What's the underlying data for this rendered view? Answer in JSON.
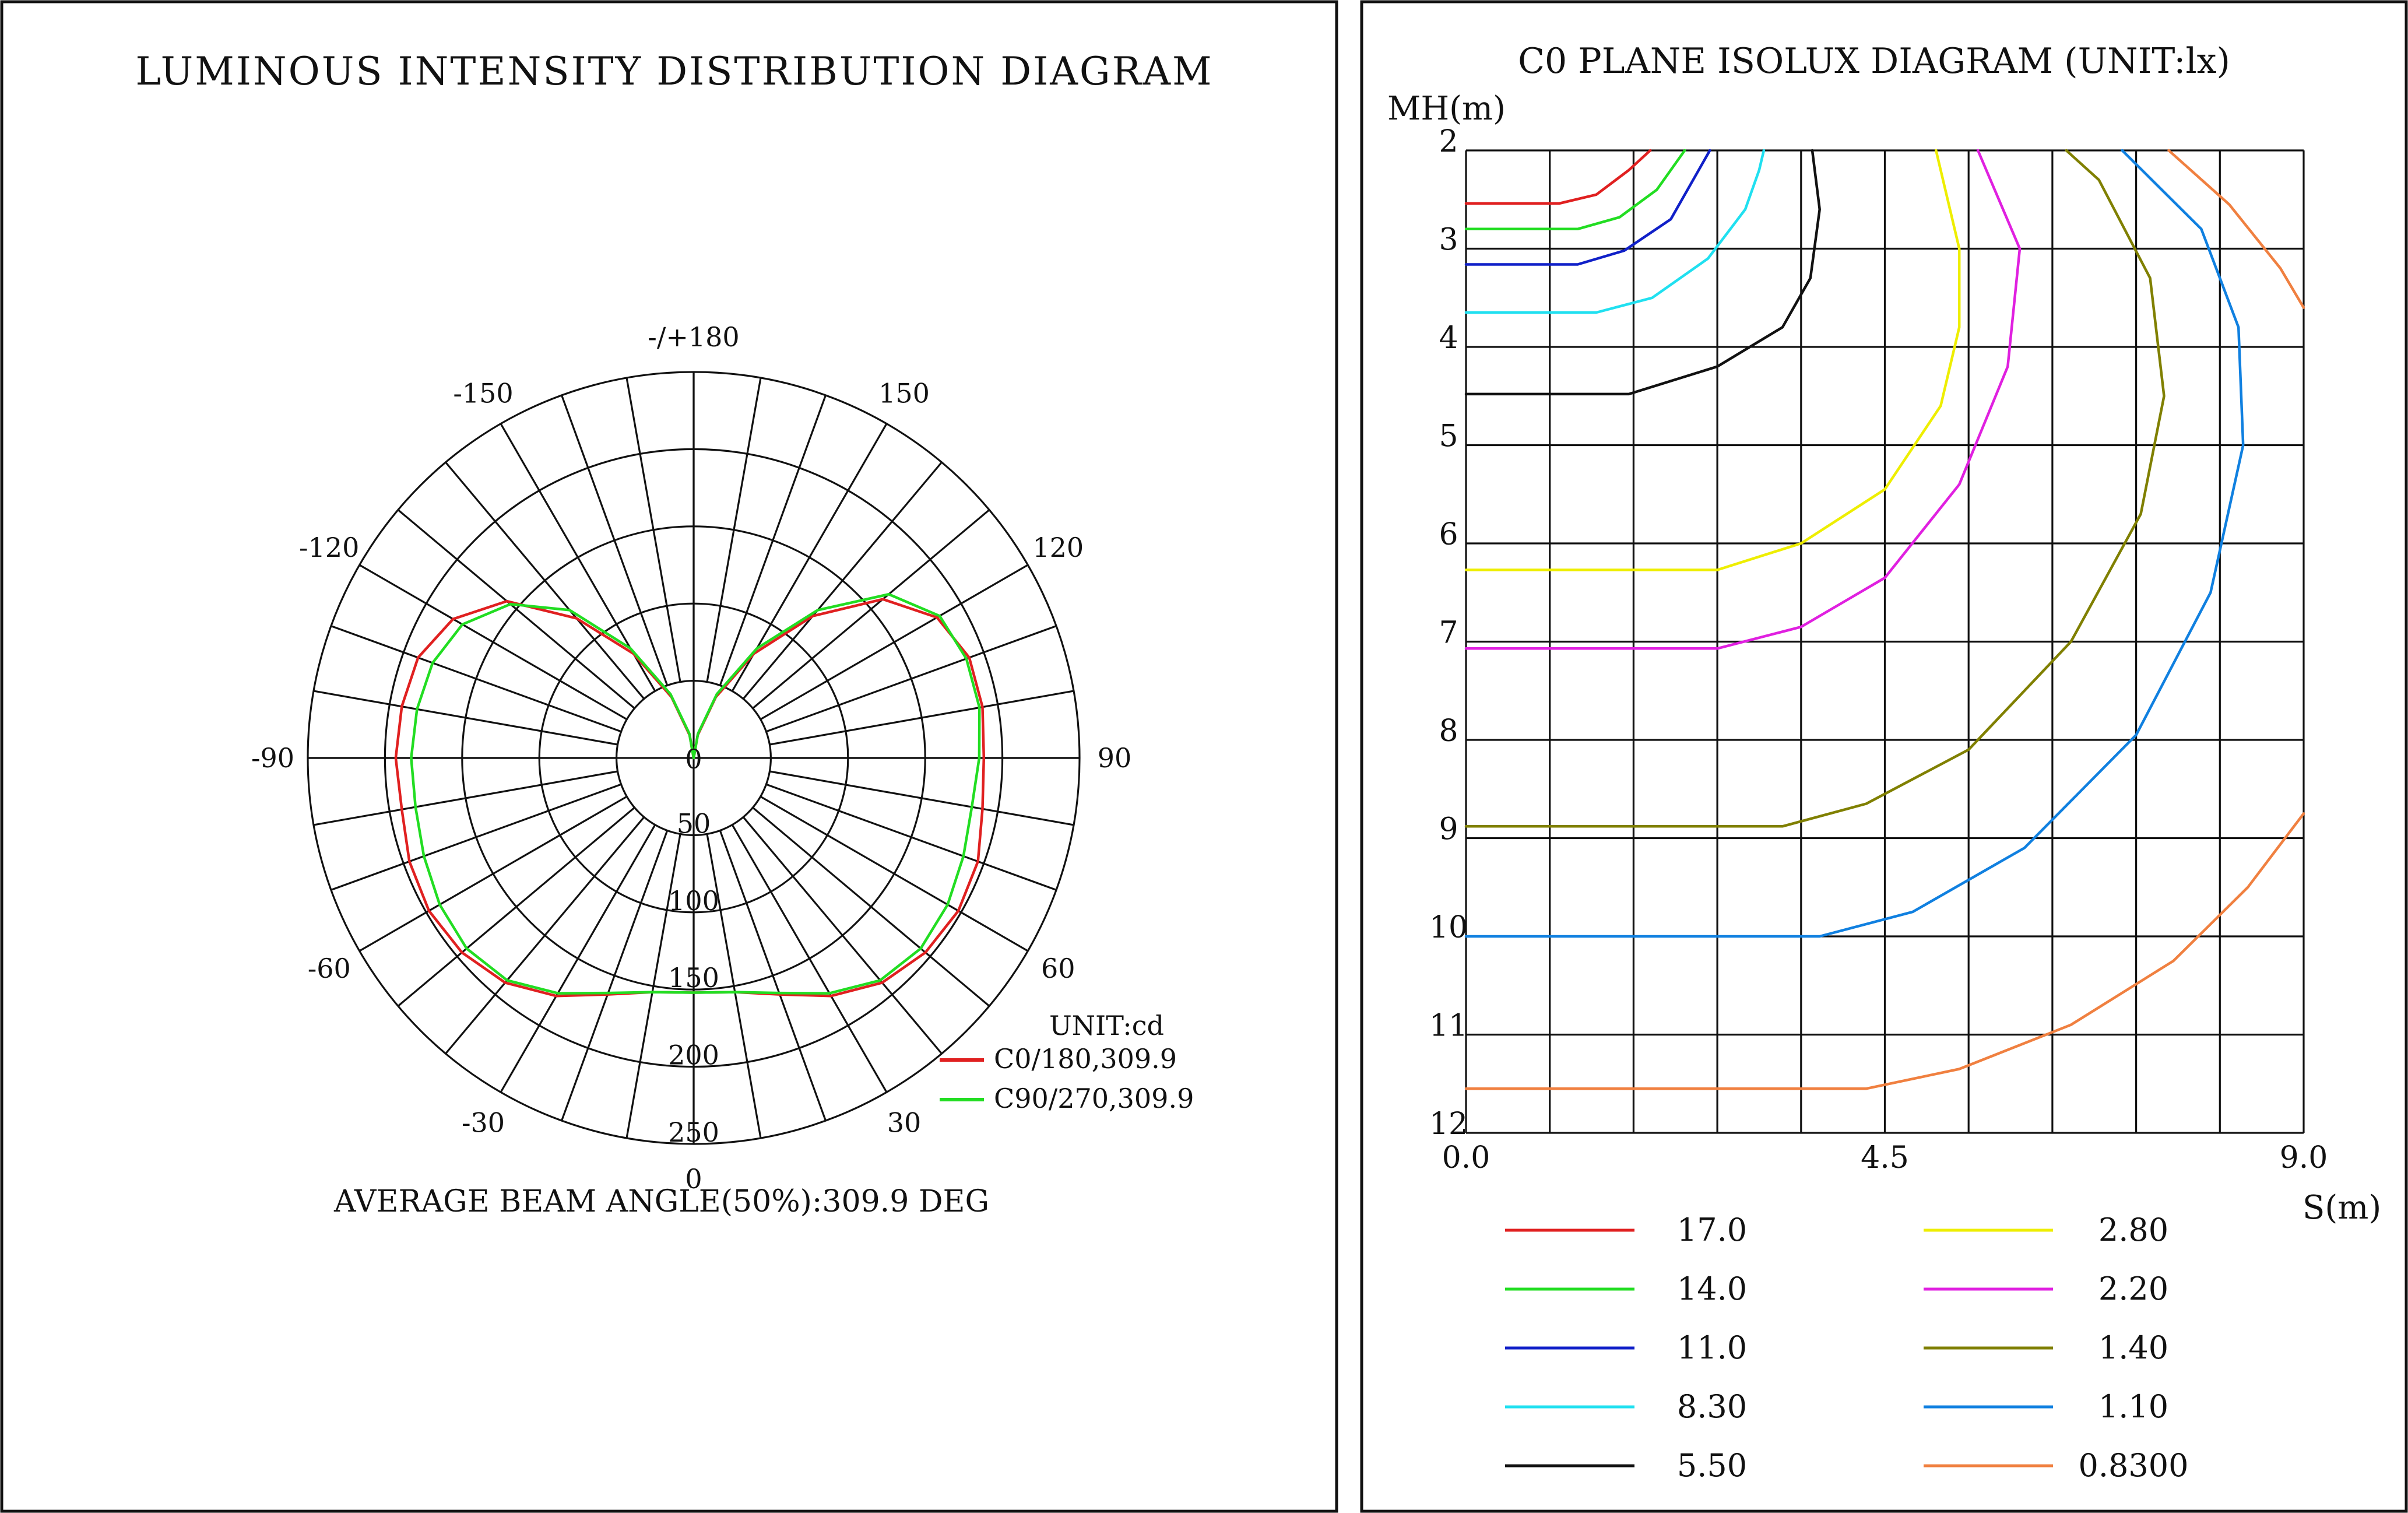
{
  "chart_data": [
    {
      "type": "polar",
      "title": "LUMINOUS INTENSITY DISTRIBUTION DIAGRAM",
      "unit_label": "UNIT:cd",
      "footer": "AVERAGE BEAM ANGLE(50%):309.9 DEG",
      "angle_labels": [
        {
          "angle": 180,
          "text": "-/+180"
        },
        {
          "angle": 150,
          "text": "150"
        },
        {
          "angle": -150,
          "text": "-150"
        },
        {
          "angle": 120,
          "text": "120"
        },
        {
          "angle": -120,
          "text": "-120"
        },
        {
          "angle": 90,
          "text": "90"
        },
        {
          "angle": -90,
          "text": "-90"
        },
        {
          "angle": 60,
          "text": "60"
        },
        {
          "angle": -60,
          "text": "-60"
        },
        {
          "angle": 30,
          "text": "30"
        },
        {
          "angle": -30,
          "text": "-30"
        },
        {
          "angle": 0,
          "text": "0"
        }
      ],
      "radial_ticks": [
        {
          "value": 0,
          "text": "0"
        },
        {
          "value": 50,
          "text": "50"
        },
        {
          "value": 100,
          "text": "100"
        },
        {
          "value": 150,
          "text": "150"
        },
        {
          "value": 200,
          "text": "200"
        },
        {
          "value": 250,
          "text": "250"
        }
      ],
      "r_max": 250,
      "hole_value": 50,
      "series": [
        {
          "name": "C0/180,309.9",
          "color": "#e02020",
          "points": [
            [
              0,
              152
            ],
            [
              10,
              154
            ],
            [
              20,
              163
            ],
            [
              30,
              178
            ],
            [
              40,
              190
            ],
            [
              50,
              196
            ],
            [
              60,
              198
            ],
            [
              70,
              196
            ],
            [
              80,
              190
            ],
            [
              90,
              188
            ],
            [
              100,
              190
            ],
            [
              110,
              190
            ],
            [
              120,
              182
            ],
            [
              130,
              160
            ],
            [
              140,
              120
            ],
            [
              150,
              78
            ],
            [
              160,
              42
            ],
            [
              170,
              15
            ],
            [
              180,
              0
            ],
            [
              -170,
              15
            ],
            [
              -160,
              42
            ],
            [
              -150,
              78
            ],
            [
              -140,
              118
            ],
            [
              -130,
              158
            ],
            [
              -120,
              180
            ],
            [
              -110,
              190
            ],
            [
              -100,
              192
            ],
            [
              -90,
              193
            ],
            [
              -80,
              192
            ],
            [
              -70,
              196
            ],
            [
              -60,
              198
            ],
            [
              -50,
              196
            ],
            [
              -40,
              190
            ],
            [
              -30,
              178
            ],
            [
              -20,
              163
            ],
            [
              -10,
              154
            ]
          ]
        },
        {
          "name": "C90/270,309.9",
          "color": "#22dd22",
          "points": [
            [
              0,
              152
            ],
            [
              10,
              154
            ],
            [
              20,
              162
            ],
            [
              30,
              176
            ],
            [
              40,
              188
            ],
            [
              50,
              192
            ],
            [
              60,
              190
            ],
            [
              70,
              186
            ],
            [
              80,
              183
            ],
            [
              90,
              185
            ],
            [
              100,
              188
            ],
            [
              110,
              188
            ],
            [
              120,
              184
            ],
            [
              130,
              165
            ],
            [
              140,
              125
            ],
            [
              150,
              82
            ],
            [
              160,
              44
            ],
            [
              170,
              16
            ],
            [
              180,
              0
            ],
            [
              -170,
              16
            ],
            [
              -160,
              44
            ],
            [
              -150,
              82
            ],
            [
              -140,
              125
            ],
            [
              -130,
              155
            ],
            [
              -120,
              173
            ],
            [
              -110,
              180
            ],
            [
              -100,
              182
            ],
            [
              -90,
              183
            ],
            [
              -80,
              183
            ],
            [
              -70,
              186
            ],
            [
              -60,
              190
            ],
            [
              -50,
              192
            ],
            [
              -40,
              188
            ],
            [
              -30,
              176
            ],
            [
              -20,
              162
            ],
            [
              -10,
              154
            ]
          ]
        }
      ]
    },
    {
      "type": "line",
      "title": "C0 PLANE ISOLUX DIAGRAM (UNIT:lx)",
      "ylabel": "MH(m)",
      "xlabel": "S(m)",
      "xlim": [
        0,
        9
      ],
      "ylim": [
        2,
        12
      ],
      "y_ticks": [
        "2",
        "3",
        "4",
        "5",
        "6",
        "7",
        "8",
        "9",
        "10",
        "11",
        "12"
      ],
      "x_ticks": [
        {
          "value": 0,
          "text": "0.0"
        },
        {
          "value": 4.5,
          "text": "4.5"
        },
        {
          "value": 9,
          "text": "9.0"
        }
      ],
      "series": [
        {
          "name": "17.0",
          "color": "#e02020",
          "points": [
            [
              0,
              2.54
            ],
            [
              1.0,
              2.54
            ],
            [
              1.4,
              2.45
            ],
            [
              1.75,
              2.2
            ],
            [
              1.98,
              2.0
            ]
          ]
        },
        {
          "name": "14.0",
          "color": "#22dd22",
          "points": [
            [
              0,
              2.8
            ],
            [
              1.2,
              2.8
            ],
            [
              1.65,
              2.68
            ],
            [
              2.05,
              2.4
            ],
            [
              2.35,
              2.0
            ]
          ]
        },
        {
          "name": "11.0",
          "color": "#1020c8",
          "points": [
            [
              0,
              3.16
            ],
            [
              1.2,
              3.16
            ],
            [
              1.7,
              3.02
            ],
            [
              2.2,
              2.7
            ],
            [
              2.5,
              2.2
            ],
            [
              2.62,
              2.0
            ]
          ]
        },
        {
          "name": "8.30",
          "color": "#20e0f0",
          "points": [
            [
              0,
              3.65
            ],
            [
              1.4,
              3.65
            ],
            [
              2.0,
              3.5
            ],
            [
              2.6,
              3.1
            ],
            [
              3.0,
              2.6
            ],
            [
              3.15,
              2.2
            ],
            [
              3.2,
              2.0
            ]
          ]
        },
        {
          "name": "5.50",
          "color": "#111111",
          "points": [
            [
              0,
              4.48
            ],
            [
              1.75,
              4.48
            ],
            [
              2.7,
              4.2
            ],
            [
              3.4,
              3.8
            ],
            [
              3.7,
              3.3
            ],
            [
              3.8,
              2.6
            ],
            [
              3.72,
              2.0
            ]
          ]
        },
        {
          "name": "2.80",
          "color": "#eeee00",
          "points": [
            [
              0,
              6.27
            ],
            [
              2.7,
              6.27
            ],
            [
              3.6,
              6.0
            ],
            [
              4.5,
              5.45
            ],
            [
              5.1,
              4.6
            ],
            [
              5.3,
              3.8
            ],
            [
              5.3,
              3.0
            ],
            [
              5.05,
              2.0
            ]
          ]
        },
        {
          "name": "2.20",
          "color": "#e020e0",
          "points": [
            [
              0,
              7.07
            ],
            [
              2.7,
              7.07
            ],
            [
              3.6,
              6.85
            ],
            [
              4.5,
              6.35
            ],
            [
              5.3,
              5.4
            ],
            [
              5.82,
              4.2
            ],
            [
              5.95,
              3.0
            ],
            [
              5.5,
              2.0
            ]
          ]
        },
        {
          "name": "1.40",
          "color": "#808000",
          "points": [
            [
              0,
              8.88
            ],
            [
              3.4,
              8.88
            ],
            [
              4.3,
              8.65
            ],
            [
              5.4,
              8.1
            ],
            [
              6.5,
              7.0
            ],
            [
              7.25,
              5.7
            ],
            [
              7.5,
              4.5
            ],
            [
              7.35,
              3.3
            ],
            [
              6.8,
              2.3
            ],
            [
              6.45,
              2.0
            ]
          ]
        },
        {
          "name": "1.10",
          "color": "#1080e0",
          "points": [
            [
              0,
              10.0
            ],
            [
              3.8,
              10.0
            ],
            [
              4.8,
              9.75
            ],
            [
              6.0,
              9.1
            ],
            [
              7.2,
              7.95
            ],
            [
              8.0,
              6.5
            ],
            [
              8.35,
              5.0
            ],
            [
              8.3,
              3.8
            ],
            [
              7.9,
              2.8
            ],
            [
              7.05,
              2.0
            ]
          ]
        },
        {
          "name": "0.8300",
          "color": "#f08040",
          "points": [
            [
              0,
              11.55
            ],
            [
              4.3,
              11.55
            ],
            [
              5.3,
              11.35
            ],
            [
              6.5,
              10.9
            ],
            [
              7.6,
              10.25
            ],
            [
              8.4,
              9.5
            ],
            [
              9.0,
              8.75
            ]
          ]
        },
        {
          "name": "",
          "color": "#f08040",
          "points": [
            [
              7.55,
              2.0
            ],
            [
              8.2,
              2.55
            ],
            [
              8.75,
              3.2
            ],
            [
              9.0,
              3.6
            ]
          ]
        }
      ]
    }
  ]
}
